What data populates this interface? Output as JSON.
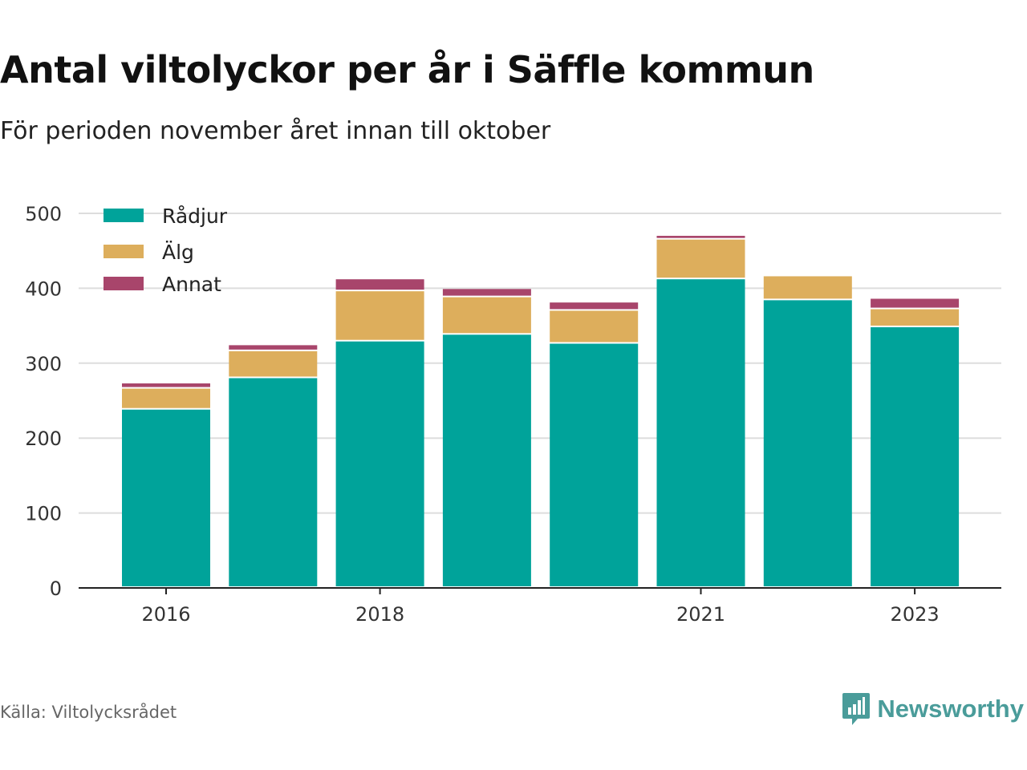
{
  "title": "Antal viltolyckor per år i Säffle kommun",
  "subtitle": "För perioden november året innan till oktober",
  "source": "Källa: Viltolycksrådet",
  "brand": {
    "name": "Newsworthy",
    "icon": "newsworthy-logo-icon",
    "color": "#4a9c9a"
  },
  "chart_data": {
    "type": "bar",
    "stacked": true,
    "categories": [
      "2016",
      "2017",
      "2018",
      "2019",
      "2020",
      "2021",
      "2022",
      "2023"
    ],
    "x_tick_labels": [
      "2016",
      "",
      "2018",
      "",
      "",
      "2021",
      "",
      "2023"
    ],
    "series": [
      {
        "name": "Rådjur",
        "color": "#00a39a",
        "values": [
          238,
          280,
          329,
          338,
          326,
          412,
          384,
          348
        ]
      },
      {
        "name": "Älg",
        "color": "#ddae5c",
        "values": [
          28,
          36,
          67,
          50,
          44,
          53,
          32,
          24
        ]
      },
      {
        "name": "Annat",
        "color": "#a8456b",
        "values": [
          7,
          8,
          16,
          11,
          11,
          5,
          0,
          14
        ]
      }
    ],
    "ylim": [
      0,
      500
    ],
    "yticks": [
      0,
      100,
      200,
      300,
      400,
      500
    ],
    "grid": true,
    "legend_position": "top-left",
    "xlabel": "",
    "ylabel": ""
  }
}
